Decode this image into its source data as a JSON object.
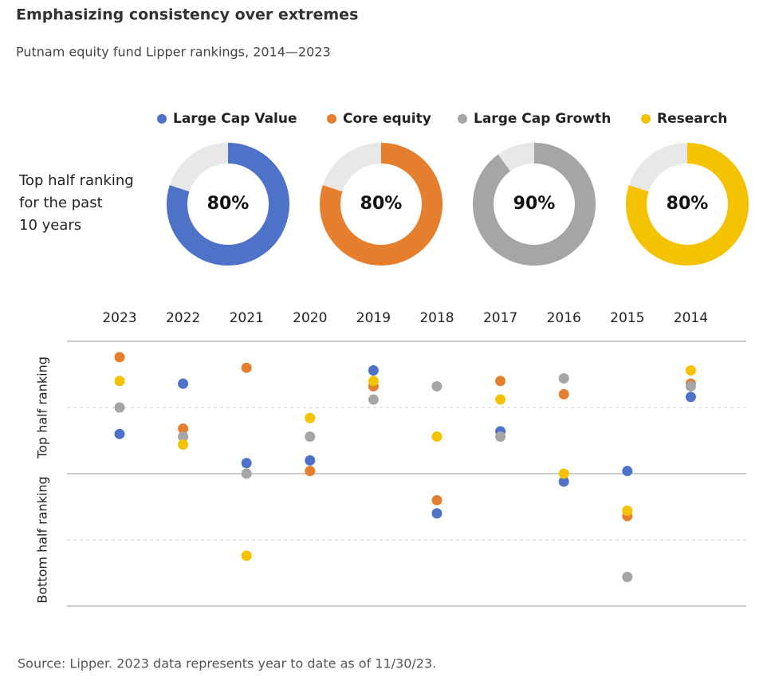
{
  "chart_data": {
    "type": "dot",
    "title": "Emphasizing consistency over extremes",
    "subtitle": "Putnam equity fund Lipper rankings, 2014—2023",
    "donut_label": [
      "Top half ranking",
      "for the past",
      "10 years"
    ],
    "series": [
      {
        "name": "Large Cap Value",
        "color": "#4e72c7",
        "top_half_share": 80,
        "top_half_label": "80%",
        "values": [
          65,
          84,
          54,
          55,
          89,
          35,
          66,
          47,
          51,
          79
        ]
      },
      {
        "name": "Core equity",
        "color": "#e57f2e",
        "top_half_share": 80,
        "top_half_label": "80%",
        "values": [
          94,
          67,
          90,
          51,
          83,
          40,
          85,
          80,
          34,
          84
        ]
      },
      {
        "name": "Large Cap Growth",
        "color": "#a5a5a5",
        "top_half_share": 90,
        "top_half_label": "90%",
        "values": [
          75,
          64,
          50,
          64,
          78,
          83,
          64,
          86,
          11,
          83
        ]
      },
      {
        "name": "Research",
        "color": "#f5c200",
        "top_half_share": 80,
        "top_half_label": "80%",
        "values": [
          85,
          61,
          19,
          71,
          85,
          64,
          78,
          50,
          36,
          89
        ]
      }
    ],
    "categories": [
      "2023",
      "2022",
      "2021",
      "2020",
      "2019",
      "2018",
      "2017",
      "2016",
      "2015",
      "2014"
    ],
    "y_label_top": "Top half ranking",
    "y_label_bottom": "Bottom half ranking",
    "ylim": [
      0,
      100
    ],
    "yticks": [
      0,
      25,
      50,
      75,
      100
    ],
    "source": "Source: Lipper. 2023 data represents year to date as of 11/30/23."
  }
}
